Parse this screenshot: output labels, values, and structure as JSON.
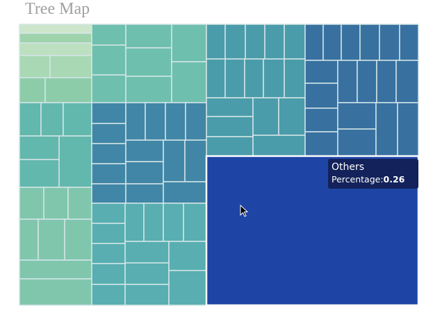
{
  "chart_data": {
    "type": "treemap",
    "title": "Tree Map",
    "groups": [
      {
        "color": "#a8d8b4"
      },
      {
        "color": "#6fbfae"
      },
      {
        "color": "#4b9caa"
      },
      {
        "color": "#3871a0"
      },
      {
        "color": "#62b8ad"
      },
      {
        "color": "#80c6ad"
      },
      {
        "color": "#4186a6"
      },
      {
        "color": "#58aeb0"
      },
      {
        "name": "Others",
        "color": "#1e45a6",
        "percentage": 0.26,
        "highlighted": true
      }
    ],
    "tooltip": {
      "name": "Others",
      "label": "Percentage:",
      "value": "0.26"
    }
  }
}
